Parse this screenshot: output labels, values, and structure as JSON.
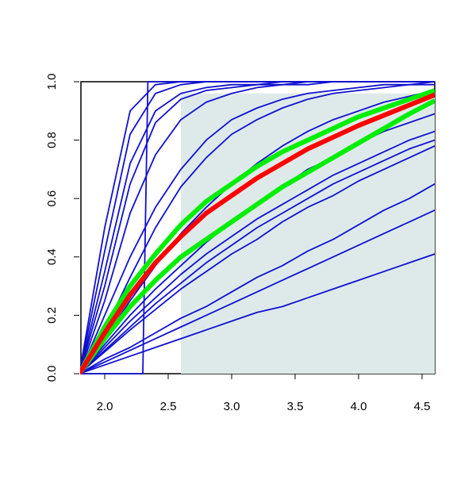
{
  "chart_data": {
    "type": "line",
    "x": [
      1.8,
      2.0,
      2.2,
      2.4,
      2.6,
      2.8,
      3.0,
      3.2,
      3.4,
      3.6,
      3.8,
      4.0,
      4.2,
      4.4,
      4.6
    ],
    "xlim": [
      1.8,
      4.6
    ],
    "ylim": [
      0,
      1
    ],
    "xticks": [
      {
        "value": 2.0,
        "label": "2.0"
      },
      2.5,
      {
        "value": 3.0,
        "label": "3.0"
      },
      3.5,
      {
        "value": 4.0,
        "label": "4.0"
      },
      4.5
    ],
    "yticks": [
      {
        "value": 0,
        "label": "0.0"
      },
      0.2,
      0.4,
      0.6,
      0.8,
      {
        "value": 1,
        "label": "1.0"
      }
    ],
    "shade": {
      "xlim": [
        2.6,
        4.6
      ],
      "ylim": [
        0,
        0.96
      ],
      "color": "#deeaea"
    },
    "series": [
      {
        "color": "#1010d0",
        "values": [
          0,
          0.5,
          0.9,
          0.99,
          1,
          1,
          1,
          1,
          1,
          1,
          1,
          1,
          1,
          1,
          1
        ]
      },
      {
        "color": "#1010d0",
        "values": [
          0,
          0.42,
          0.82,
          0.96,
          0.99,
          1,
          1,
          1,
          1,
          1,
          1,
          1,
          1,
          1,
          1
        ]
      },
      {
        "color": "#1010d0",
        "values": [
          0,
          0.35,
          0.72,
          0.9,
          0.96,
          0.98,
          0.99,
          0.99,
          1,
          1,
          1,
          1,
          1,
          1,
          1
        ]
      },
      {
        "color": "#1010d0",
        "values": [
          0,
          0.3,
          0.65,
          0.86,
          0.94,
          0.97,
          0.98,
          0.99,
          0.99,
          1,
          1,
          1,
          1,
          1,
          1
        ]
      },
      {
        "color": "#1010d0",
        "x": [
          1.8,
          2.3,
          2.32,
          2.34,
          4.6
        ],
        "values": [
          0,
          0,
          0.5,
          1,
          1
        ]
      },
      {
        "color": "#1010d0",
        "values": [
          0,
          0.25,
          0.55,
          0.75,
          0.87,
          0.93,
          0.96,
          0.98,
          0.99,
          0.99,
          1,
          1,
          1,
          1,
          1
        ]
      },
      {
        "color": "#1010d0",
        "values": [
          0,
          0.2,
          0.4,
          0.57,
          0.7,
          0.8,
          0.87,
          0.91,
          0.94,
          0.96,
          0.97,
          0.98,
          0.99,
          0.99,
          1
        ]
      },
      {
        "color": "#1010d0",
        "values": [
          0,
          0.15,
          0.33,
          0.5,
          0.64,
          0.74,
          0.82,
          0.87,
          0.91,
          0.94,
          0.96,
          0.97,
          0.98,
          0.99,
          0.99
        ]
      },
      {
        "color": "#1010d0",
        "values": [
          0,
          0.12,
          0.25,
          0.37,
          0.48,
          0.57,
          0.65,
          0.72,
          0.78,
          0.83,
          0.87,
          0.9,
          0.93,
          0.95,
          0.97
        ]
      },
      {
        "color": "#1010d0",
        "values": [
          0,
          0.1,
          0.2,
          0.29,
          0.37,
          0.45,
          0.52,
          0.58,
          0.64,
          0.7,
          0.74,
          0.79,
          0.83,
          0.86,
          0.89
        ]
      },
      {
        "color": "#1010d0",
        "values": [
          0,
          0.09,
          0.18,
          0.26,
          0.34,
          0.41,
          0.47,
          0.53,
          0.58,
          0.63,
          0.68,
          0.72,
          0.76,
          0.8,
          0.83
        ]
      },
      {
        "color": "#1010d0",
        "values": [
          0,
          0.08,
          0.16,
          0.24,
          0.31,
          0.38,
          0.44,
          0.5,
          0.55,
          0.6,
          0.65,
          0.69,
          0.73,
          0.77,
          0.8
        ]
      },
      {
        "color": "#1010d0",
        "values": [
          0,
          0.075,
          0.15,
          0.22,
          0.29,
          0.35,
          0.41,
          0.46,
          0.52,
          0.57,
          0.61,
          0.66,
          0.7,
          0.74,
          0.78
        ]
      },
      {
        "color": "#1010d0",
        "values": [
          0,
          0.05,
          0.09,
          0.14,
          0.19,
          0.23,
          0.28,
          0.33,
          0.37,
          0.42,
          0.46,
          0.51,
          0.56,
          0.6,
          0.65
        ]
      },
      {
        "color": "#1010d0",
        "values": [
          0,
          0.04,
          0.08,
          0.12,
          0.16,
          0.2,
          0.24,
          0.28,
          0.32,
          0.36,
          0.4,
          0.44,
          0.48,
          0.52,
          0.56
        ]
      },
      {
        "color": "#1010d0",
        "values": [
          0,
          0.03,
          0.06,
          0.09,
          0.12,
          0.15,
          0.18,
          0.21,
          0.23,
          0.26,
          0.29,
          0.32,
          0.35,
          0.38,
          0.41
        ]
      },
      {
        "color": "#00ee00",
        "values": [
          0,
          0.16,
          0.3,
          0.41,
          0.51,
          0.59,
          0.65,
          0.71,
          0.76,
          0.8,
          0.84,
          0.88,
          0.91,
          0.94,
          0.97
        ]
      },
      {
        "color": "#00ee00",
        "values": [
          0,
          0.12,
          0.23,
          0.32,
          0.4,
          0.46,
          0.52,
          0.58,
          0.64,
          0.69,
          0.74,
          0.79,
          0.84,
          0.89,
          0.935
        ]
      },
      {
        "color": "#ff0000",
        "values": [
          0,
          0.14,
          0.27,
          0.38,
          0.47,
          0.55,
          0.61,
          0.67,
          0.72,
          0.77,
          0.81,
          0.85,
          0.885,
          0.92,
          0.955
        ]
      }
    ]
  }
}
